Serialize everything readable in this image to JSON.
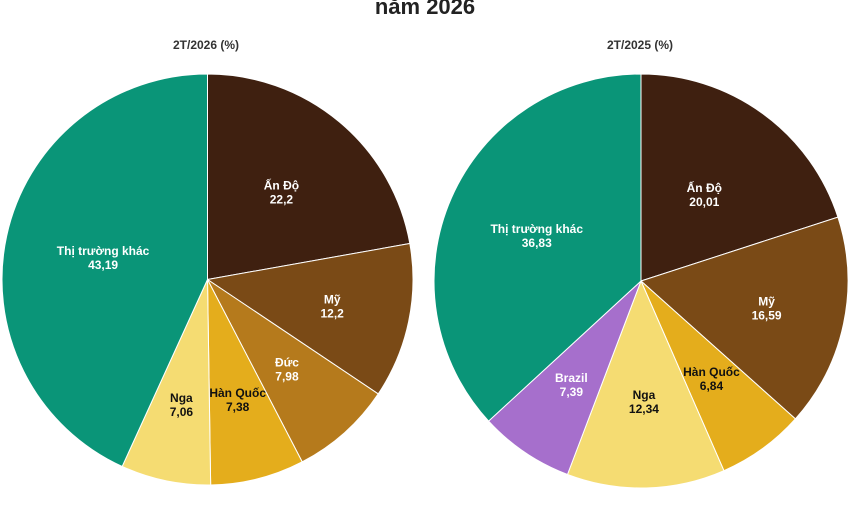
{
  "page": {
    "title": "năm 2026"
  },
  "chart_data": [
    {
      "type": "pie",
      "title": "2T/2026 (%)",
      "slices": [
        {
          "label": "Ấn Độ",
          "value": 22.2,
          "display": "22,2",
          "color": "#3f2010",
          "text_color": "#ffffff"
        },
        {
          "label": "Mỹ",
          "value": 12.2,
          "display": "12,2",
          "color": "#7a4a16",
          "text_color": "#ffffff"
        },
        {
          "label": "Đức",
          "value": 7.98,
          "display": "7,98",
          "color": "#b57a1c",
          "text_color": "#ffffff"
        },
        {
          "label": "Hàn Quốc",
          "value": 7.38,
          "display": "7,38",
          "color": "#e4ad1c",
          "text_color": "#111111"
        },
        {
          "label": "Nga",
          "value": 7.06,
          "display": "7,06",
          "color": "#f5dc72",
          "text_color": "#111111"
        },
        {
          "label": "Thị trường khác",
          "value": 43.19,
          "display": "43,19",
          "color": "#0a9578",
          "text_color": "#ffffff"
        }
      ]
    },
    {
      "type": "pie",
      "title": "2T/2025 (%)",
      "slices": [
        {
          "label": "Ấn Độ",
          "value": 20.01,
          "display": "20,01",
          "color": "#3f2010",
          "text_color": "#ffffff"
        },
        {
          "label": "Mỹ",
          "value": 16.59,
          "display": "16,59",
          "color": "#7a4a16",
          "text_color": "#ffffff"
        },
        {
          "label": "Hàn Quốc",
          "value": 6.84,
          "display": "6,84",
          "color": "#e4ad1c",
          "text_color": "#111111"
        },
        {
          "label": "Nga",
          "value": 12.34,
          "display": "12,34",
          "color": "#f5dc72",
          "text_color": "#111111"
        },
        {
          "label": "Brazil",
          "value": 7.39,
          "display": "7,39",
          "color": "#a66fcc",
          "text_color": "#ffffff"
        },
        {
          "label": "Thị trường khác",
          "value": 36.83,
          "display": "36,83",
          "color": "#0a9578",
          "text_color": "#ffffff"
        }
      ]
    }
  ]
}
